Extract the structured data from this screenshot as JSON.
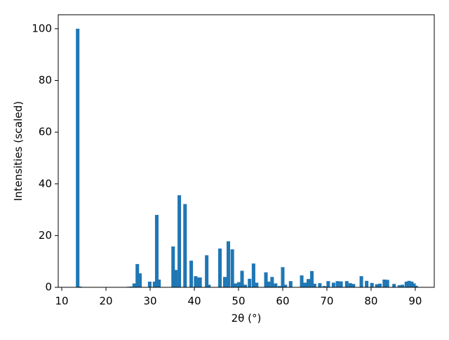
{
  "chart_data": {
    "type": "bar",
    "xlabel": "2θ (°)",
    "ylabel": "Intensities (scaled)",
    "color": "#1f77b4",
    "x": [
      13.6,
      14.1,
      25,
      25.6,
      26.4,
      27.1,
      27.7,
      29.9,
      31,
      31.5,
      32,
      35.2,
      35.8,
      36.6,
      37.9,
      39.3,
      40.3,
      40.8,
      41.3,
      42.8,
      43.3,
      45.8,
      46.9,
      47.7,
      48.6,
      49.3,
      50.1,
      50.8,
      51.5,
      52.5,
      53.4,
      54.1,
      56.2,
      56.8,
      57.6,
      58.4,
      59.3,
      60,
      60.6,
      61.8,
      64.3,
      65,
      65.8,
      66.6,
      67.2,
      68.4,
      69.4,
      70.3,
      71.5,
      72.4,
      73.2,
      74.5,
      75.3,
      76,
      77.8,
      79,
      80.2,
      81.3,
      82,
      83,
      83.7,
      85.2,
      86.4,
      87.1,
      88,
      88.6,
      89.2,
      89.7,
      90.2
    ],
    "values": [
      100,
      0.3,
      0.2,
      0.3,
      1.5,
      9,
      5.4,
      2.2,
      2.2,
      28,
      3,
      15.8,
      6.7,
      35.6,
      32.2,
      10.3,
      4.3,
      3.8,
      3.8,
      12.4,
      1,
      15,
      4,
      17.8,
      14.7,
      1.5,
      2,
      6.4,
      1,
      3.3,
      9.2,
      1.8,
      5.8,
      2.2,
      4,
      1.5,
      0.5,
      7.8,
      1,
      2.4,
      4.6,
      1.8,
      3.2,
      6.3,
      1.4,
      1.6,
      0.5,
      2.4,
      1.8,
      2.4,
      2.3,
      2.4,
      1.6,
      1.3,
      4.3,
      2.5,
      1.7,
      1.2,
      1.4,
      3,
      2.9,
      1.3,
      0.8,
      1,
      2.2,
      2.5,
      2.2,
      1.5,
      0.6
    ],
    "xlim": [
      9.2,
      94.3
    ],
    "ylim": [
      0,
      105.4
    ],
    "xticks": [
      10,
      20,
      30,
      40,
      50,
      60,
      70,
      80,
      90
    ],
    "yticks": [
      0,
      20,
      40,
      60,
      80,
      100
    ]
  }
}
